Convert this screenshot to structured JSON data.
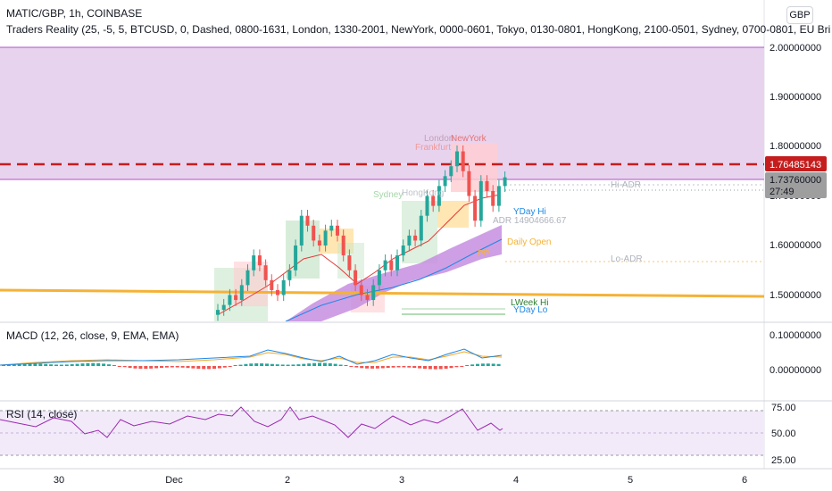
{
  "header": {
    "symbol_line": "MATIC/GBP, 1h, COINBASE",
    "indicator_line": "Traders Reality (25, -5, 5, BTCUSD, 0, Dashed, 0800-1631, London, 1330-2001, NewYork, 0000-0601, Tokyo, 0130-0801, HongKong, 2100-0501, Sydney, 0700-0801, EU Bri",
    "currency_button": "GBP"
  },
  "price_axis": {
    "ticks": [
      "2.00000000",
      "1.90000000",
      "1.80000000",
      "1.70000000",
      "1.60000000",
      "1.50000000"
    ],
    "level_badge": "1.76485143",
    "last_price_badge": "1.73760000",
    "countdown": "27:49"
  },
  "chart_labels": {
    "london": "London",
    "newyork": "NewYork",
    "frankfurt": "Frankfurt",
    "sydney": "Sydney",
    "hongkong": "HongKong",
    "hi_adr": "Hi-ADR",
    "lo_adr": "Lo-ADR",
    "yday_hi": "YDay Hi",
    "yday_lo": "YDay Lo",
    "adr": "ADR 14904666.67",
    "daily_open": "Daily Open",
    "lweek_hi": "LWeek Hi",
    "pp": "PP"
  },
  "macd": {
    "label": "MACD (12, 26, close, 9, EMA, EMA)",
    "ticks": [
      "0.10000000",
      "0.00000000"
    ]
  },
  "rsi": {
    "label": "RSI (14, close)",
    "ticks": [
      "75.00",
      "50.00",
      "25.00"
    ]
  },
  "time_axis": {
    "ticks": [
      "30",
      "Dec",
      "2",
      "3",
      "4",
      "5",
      "6"
    ]
  },
  "colors": {
    "premium_zone": "#e8d3ef",
    "level_line": "#c51d1d",
    "yellow_line": "#f5b236",
    "ema_cloud": "#c58ee0",
    "up": "#26a69a",
    "down": "#ef5350"
  },
  "chart_data": {
    "type": "candlestick",
    "pair": "MATIC/GBP",
    "interval": "1h",
    "close_path": [
      1.47,
      1.48,
      1.5,
      1.49,
      1.52,
      1.55,
      1.58,
      1.56,
      1.53,
      1.51,
      1.5,
      1.53,
      1.55,
      1.6,
      1.66,
      1.64,
      1.61,
      1.6,
      1.63,
      1.64,
      1.62,
      1.58,
      1.55,
      1.52,
      1.5,
      1.49,
      1.52,
      1.55,
      1.57,
      1.55,
      1.58,
      1.6,
      1.62,
      1.61,
      1.66,
      1.7,
      1.68,
      1.72,
      1.74,
      1.76,
      1.79,
      1.75,
      1.7,
      1.65,
      1.73,
      1.71,
      1.68,
      1.72,
      1.7376
    ],
    "levels": {
      "red_dashed": 1.76485143,
      "last_price": 1.7376,
      "yellow": 1.505
    }
  }
}
